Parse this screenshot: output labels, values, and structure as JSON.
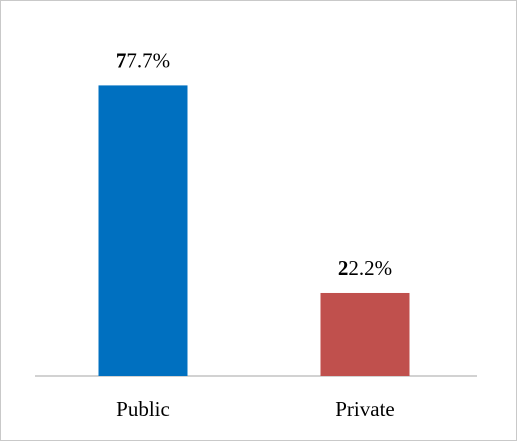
{
  "chart_data": {
    "type": "bar",
    "categories": [
      "Public",
      "Private"
    ],
    "values": [
      77.7,
      22.2
    ],
    "data_labels": [
      {
        "lead": "7",
        "rest": "7.7%"
      },
      {
        "lead": "2",
        "rest": "2.2%"
      }
    ],
    "colors": [
      "#0070c0",
      "#c0504d"
    ],
    "title": "",
    "xlabel": "",
    "ylabel": "",
    "ylim": [
      0,
      100
    ],
    "grid": false,
    "legend": "none"
  }
}
